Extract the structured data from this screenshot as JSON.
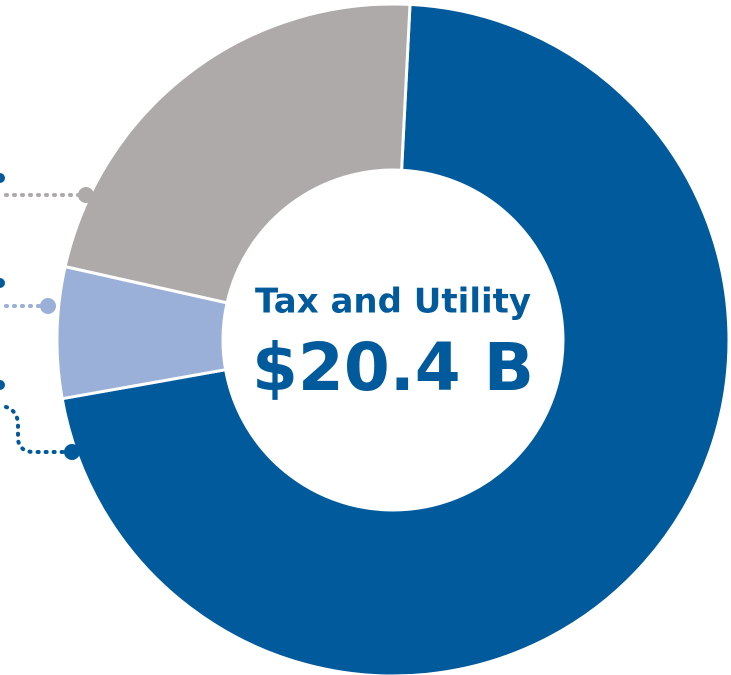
{
  "chart_data": {
    "type": "pie",
    "title": "Tax and Utility",
    "center_value": "$20.4 B",
    "values": [
      71.4,
      6.3,
      22.3
    ],
    "colors": [
      "#005a9c",
      "#9bb0d9",
      "#aeaaa9"
    ],
    "donut": true
  }
}
